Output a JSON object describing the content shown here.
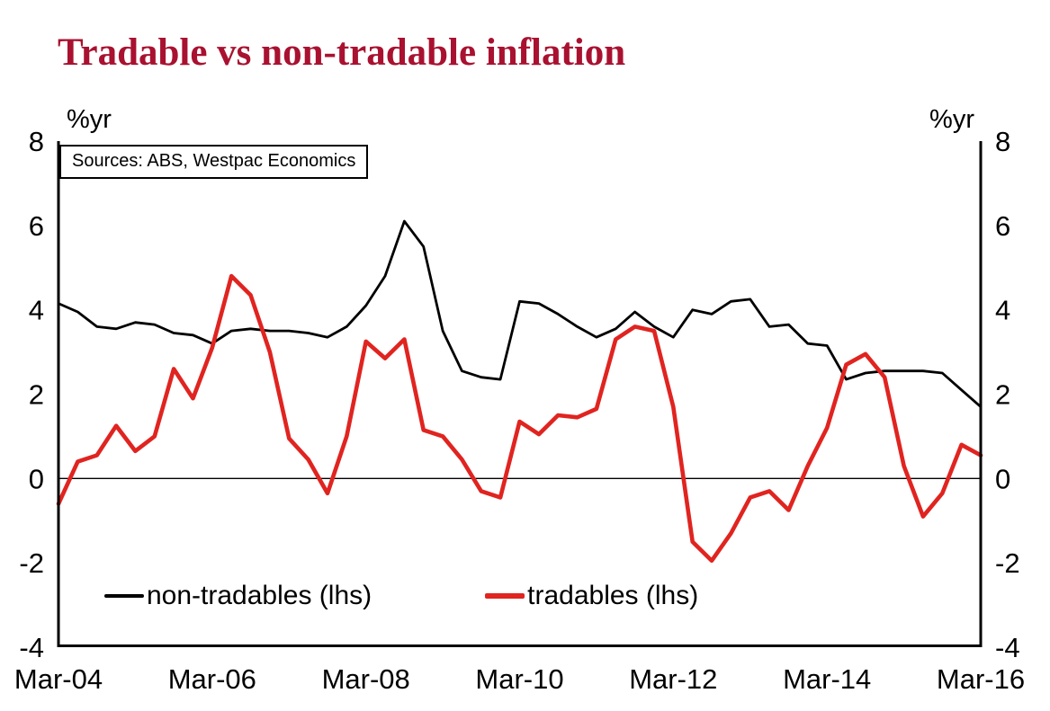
{
  "title": "Tradable vs non-tradable inflation",
  "source_note": "Sources: ABS, Westpac Economics",
  "axis_unit_left": "%yr",
  "axis_unit_right": "%yr",
  "colors": {
    "title": "#a91130",
    "non_tradables": "#000000",
    "tradables": "#e02420",
    "axis": "#000000",
    "background": "#ffffff"
  },
  "legend": {
    "items": [
      {
        "label": "non-tradables (lhs)"
      },
      {
        "label": "tradables (lhs)"
      }
    ]
  },
  "chart_data": {
    "type": "line",
    "title": "Tradable vs non-tradable inflation",
    "ylabel": "%yr",
    "ylim": [
      -4,
      8
    ],
    "y_ticks": [
      -4,
      -2,
      0,
      2,
      4,
      6,
      8
    ],
    "zero_line": true,
    "grid": false,
    "legend_position": "inside-bottom-left",
    "x_frequency": "quarterly",
    "x_start": "Mar-04",
    "x_end": "Mar-16",
    "x_tick_labels": [
      "Mar-04",
      "Mar-06",
      "Mar-08",
      "Mar-10",
      "Mar-12",
      "Mar-14",
      "Mar-16"
    ],
    "series": [
      {
        "name": "non-tradables (lhs)",
        "color": "#000000",
        "line_width": 2.8,
        "values": [
          4.15,
          3.95,
          3.6,
          3.55,
          3.7,
          3.65,
          3.45,
          3.4,
          3.2,
          3.5,
          3.55,
          3.5,
          3.5,
          3.45,
          3.35,
          3.6,
          4.1,
          4.8,
          6.1,
          5.5,
          3.5,
          2.55,
          2.4,
          2.35,
          4.2,
          4.15,
          3.9,
          3.6,
          3.35,
          3.55,
          3.95,
          3.6,
          3.35,
          4.0,
          3.9,
          4.2,
          4.25,
          3.6,
          3.65,
          3.2,
          3.15,
          2.35,
          2.5,
          2.55,
          2.55,
          2.55,
          2.5,
          2.1,
          1.7
        ]
      },
      {
        "name": "tradables (lhs)",
        "color": "#e02420",
        "line_width": 4.6,
        "values": [
          -0.6,
          0.4,
          0.55,
          1.25,
          0.65,
          1.0,
          2.6,
          1.9,
          3.1,
          4.8,
          4.35,
          3.0,
          0.95,
          0.45,
          -0.35,
          1.0,
          3.25,
          2.85,
          3.3,
          1.15,
          1.0,
          0.45,
          -0.3,
          -0.45,
          1.35,
          1.05,
          1.5,
          1.45,
          1.65,
          3.3,
          3.6,
          3.5,
          1.7,
          -1.5,
          -1.95,
          -1.3,
          -0.45,
          -0.3,
          -0.75,
          0.3,
          1.2,
          2.7,
          2.95,
          2.4,
          0.3,
          -0.9,
          -0.35,
          0.8,
          0.55
        ]
      }
    ]
  }
}
